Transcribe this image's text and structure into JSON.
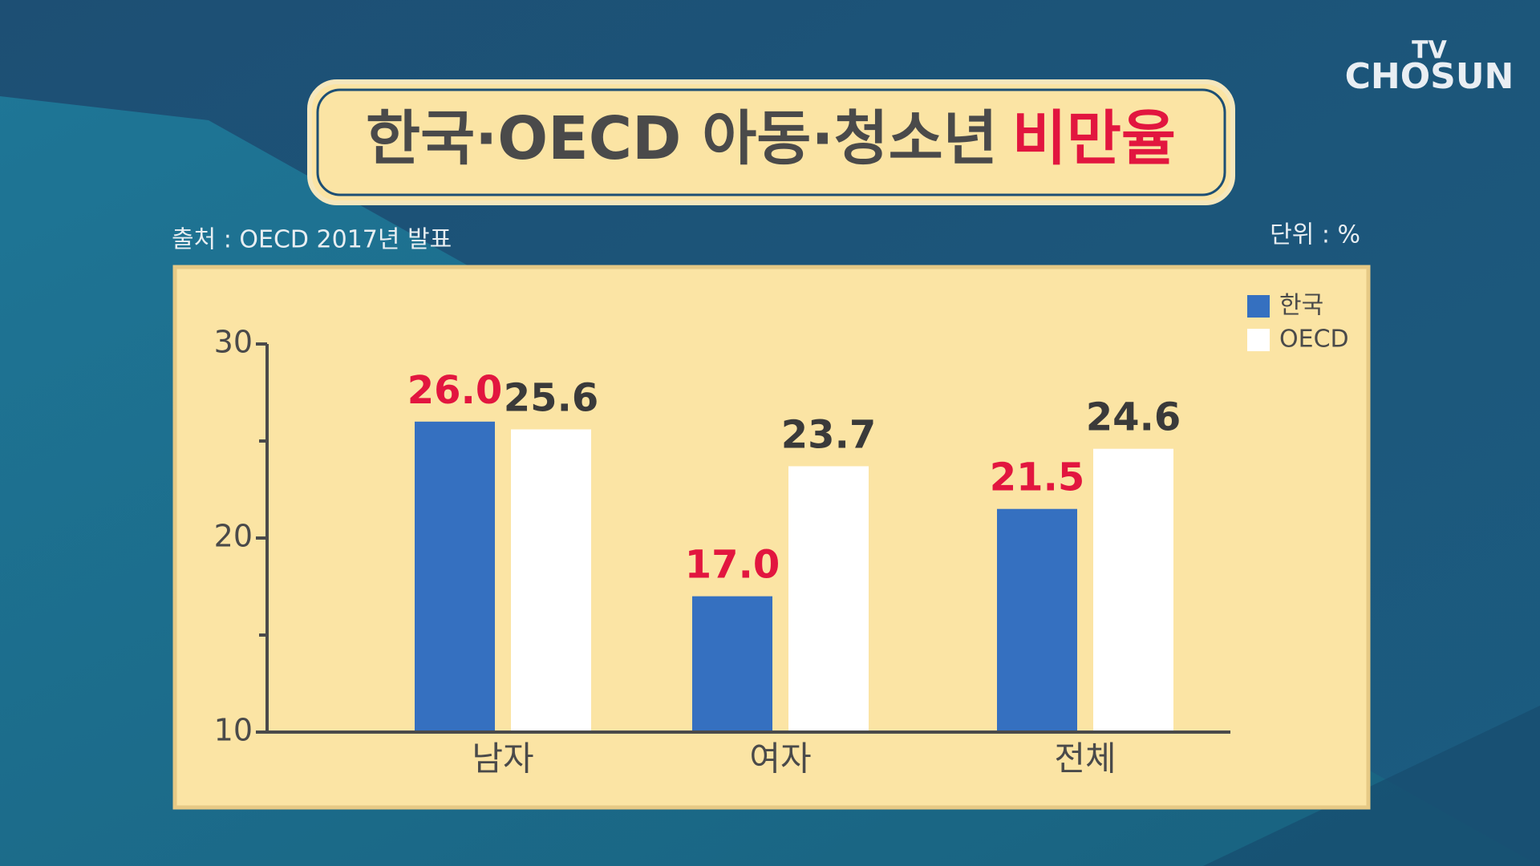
{
  "logo": {
    "top": "TV",
    "bottom": "CHOSUN"
  },
  "chart_data": {
    "type": "bar",
    "title": "한국·OECD 아동·청소년",
    "title_emphasis": "비만율",
    "source": "출처 : OECD 2017년 발표",
    "unit": "단위 : %",
    "categories": [
      "남자",
      "여자",
      "전체"
    ],
    "series": [
      {
        "name": "한국",
        "color": "#3570c0",
        "label_color": "#e2163f",
        "values": [
          26.0,
          17.0,
          21.5
        ],
        "value_labels": [
          "26.0",
          "17.0",
          "21.5"
        ]
      },
      {
        "name": "OECD",
        "color": "#ffffff",
        "label_color": "#3a3a3a",
        "values": [
          25.6,
          23.7,
          24.6
        ],
        "value_labels": [
          "25.6",
          "23.7",
          "24.6"
        ]
      }
    ],
    "ylim": [
      10,
      30
    ],
    "yticks": [
      10,
      20,
      30
    ],
    "yticks_minor": [
      15,
      25
    ],
    "legend": "top-right",
    "grid": false
  }
}
